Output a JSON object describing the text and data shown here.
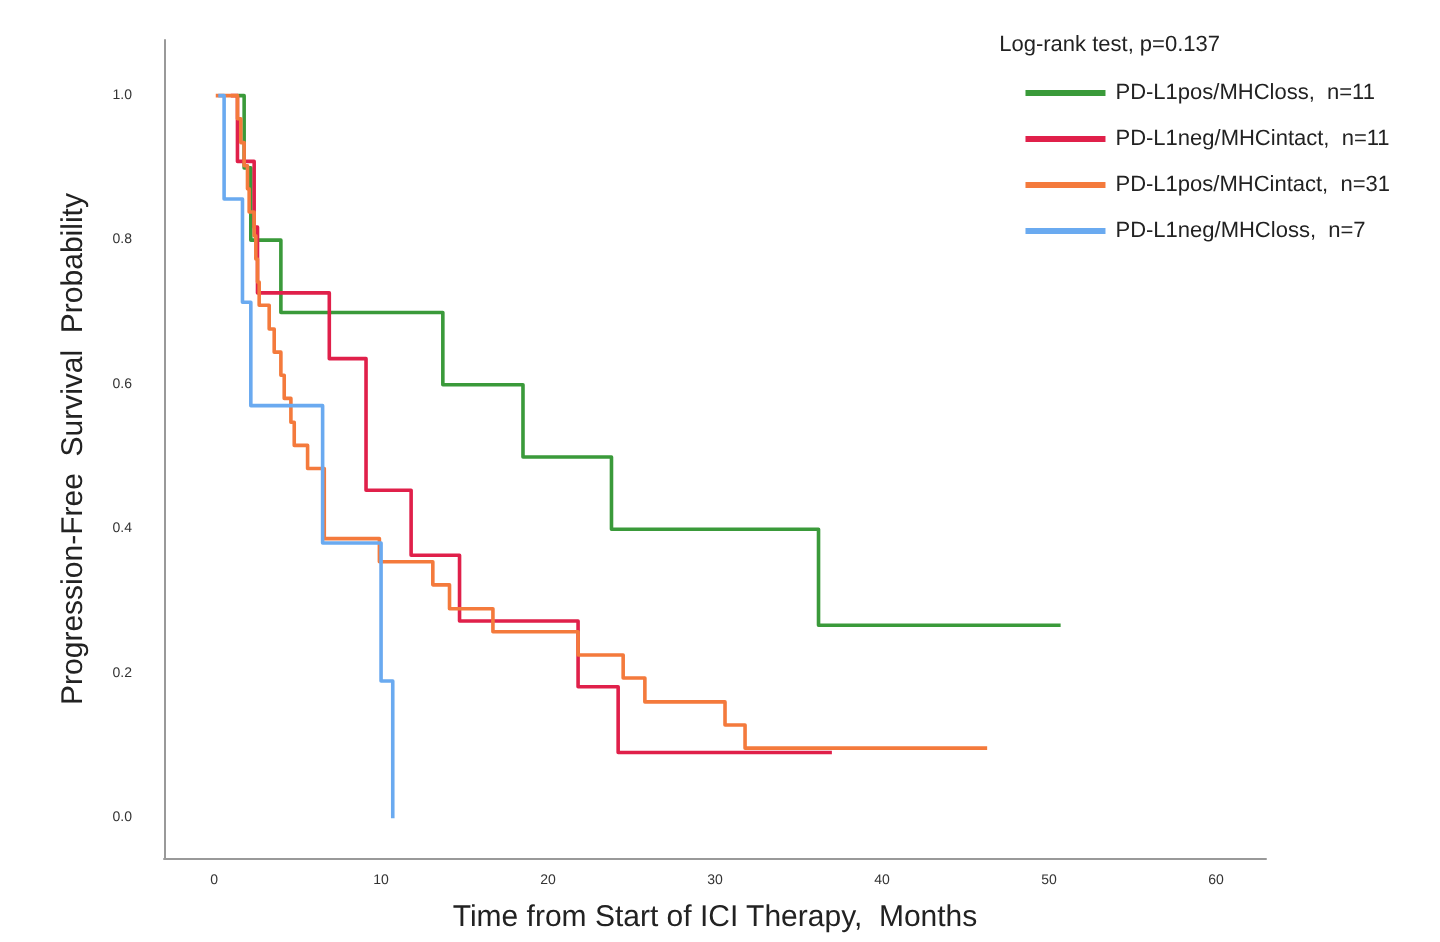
{
  "chart_data": {
    "type": "step",
    "xlabel": "Time from Start of ICI Therapy,  Months",
    "ylabel": "Progression-Free  Survival  Probability",
    "legend_title": "Log-rank test, p=0.137",
    "legend": "top right",
    "grid": false,
    "marker": "none",
    "line_style": "solid",
    "xlim": [
      -3,
      63
    ],
    "xticks": [
      0,
      10,
      20,
      30,
      40,
      50,
      60
    ],
    "ylim": [
      -0.055,
      1.077
    ],
    "yticks": [
      {
        "value": 0,
        "label": "0.0"
      },
      0.2,
      0.4,
      0.6,
      0.8,
      {
        "value": 1,
        "label": "1.0"
      }
    ],
    "series": [
      {
        "name": "PD-L1pos/MHCloss,  n=11",
        "color": "#3a9a3a",
        "x": [
          1.4,
          1.8,
          2.2,
          4.0,
          13.7,
          18.5,
          23.8,
          36.2,
          50.7
        ],
        "values": [
          1.0,
          0.9,
          0.8,
          0.7,
          0.6,
          0.5,
          0.4,
          0.267,
          0.267
        ]
      },
      {
        "name": "PD-L1neg/MHCintact,  n=11",
        "color": "#e0204a",
        "x": [
          1.0,
          1.4,
          2.4,
          2.6,
          6.9,
          9.1,
          11.8,
          14.7,
          21.8,
          24.2,
          37.0
        ],
        "values": [
          1.0,
          0.909,
          0.818,
          0.727,
          0.636,
          0.454,
          0.364,
          0.273,
          0.182,
          0.091,
          0.091
        ]
      },
      {
        "name": "PD-L1pos/MHCintact,  n=31",
        "color": "#f47a3c",
        "x": [
          0.1,
          1.4,
          1.6,
          1.8,
          2.0,
          2.1,
          2.4,
          2.5,
          2.6,
          2.7,
          3.3,
          3.6,
          4.0,
          4.2,
          4.6,
          4.8,
          5.6,
          6.6,
          9.9,
          13.1,
          14.1,
          16.7,
          21.8,
          24.5,
          25.8,
          30.6,
          31.8,
          46.3
        ],
        "values": [
          1.0,
          0.968,
          0.935,
          0.903,
          0.871,
          0.839,
          0.806,
          0.774,
          0.742,
          0.71,
          0.677,
          0.645,
          0.613,
          0.581,
          0.548,
          0.516,
          0.484,
          0.387,
          0.355,
          0.323,
          0.29,
          0.258,
          0.226,
          0.194,
          0.161,
          0.129,
          0.097,
          0.097
        ]
      },
      {
        "name": "PD-L1neg/MHCloss,  n=7",
        "color": "#6aaaf0",
        "x": [
          0.25,
          0.6,
          1.7,
          2.2,
          6.5,
          10.0,
          10.7
        ],
        "values": [
          1.0,
          0.857,
          0.714,
          0.571,
          0.381,
          0.19,
          0.0
        ]
      }
    ]
  }
}
